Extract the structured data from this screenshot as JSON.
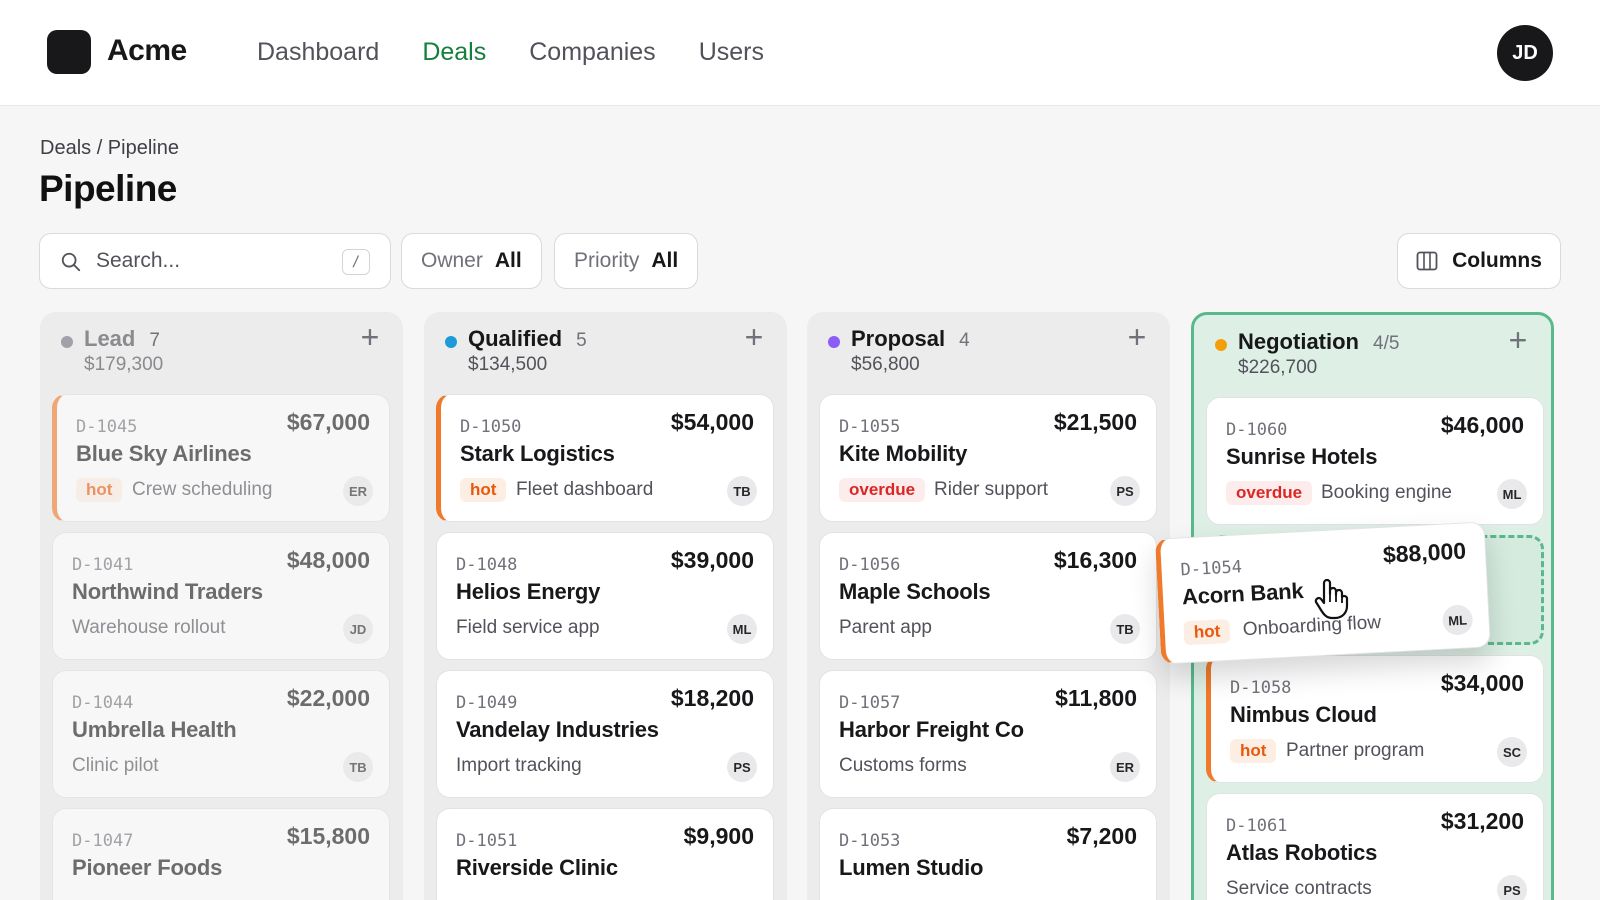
{
  "header": {
    "brand": "Acme",
    "nav": [
      "Dashboard",
      "Deals",
      "Companies",
      "Users"
    ],
    "active_nav": "Deals",
    "avatar_initials": "JD"
  },
  "page": {
    "breadcrumb": "Deals / Pipeline",
    "title": "Pipeline"
  },
  "toolbar": {
    "search_placeholder": "Search...",
    "search_shortcut": "/",
    "owner_label": "Owner",
    "owner_value": "All",
    "priority_label": "Priority",
    "priority_value": "All",
    "columns_label": "Columns"
  },
  "colors": {
    "accent": "#15803d",
    "lead": "#a1a1aa",
    "qualified": "#1d9bd8",
    "proposal": "#8b5cf6",
    "negotiation": "#f59e0b",
    "hot_tag": "#dc2626",
    "priority_border": "#f07a2a"
  },
  "columns": [
    {
      "name": "Lead",
      "count": "7",
      "total": "$179,300",
      "cards": [
        {
          "id": "D-1045",
          "amount": "$67,000",
          "company": "Blue Sky Airlines",
          "tag": "hot",
          "desc": "Crew scheduling",
          "owner": "ER"
        },
        {
          "id": "D-1041",
          "amount": "$48,000",
          "company": "Northwind Traders",
          "tag": "",
          "desc": "Warehouse rollout",
          "owner": "JD"
        },
        {
          "id": "D-1044",
          "amount": "$22,000",
          "company": "Umbrella Health",
          "tag": "",
          "desc": "Clinic pilot",
          "owner": "TB"
        },
        {
          "id": "D-1047",
          "amount": "$15,800",
          "company": "Pioneer Foods",
          "tag": "",
          "desc": "",
          "owner": ""
        }
      ]
    },
    {
      "name": "Qualified",
      "count": "5",
      "total": "$134,500",
      "cards": [
        {
          "id": "D-1050",
          "amount": "$54,000",
          "company": "Stark Logistics",
          "tag": "hot",
          "desc": "Fleet dashboard",
          "owner": "TB"
        },
        {
          "id": "D-1048",
          "amount": "$39,000",
          "company": "Helios Energy",
          "tag": "",
          "desc": "Field service app",
          "owner": "ML"
        },
        {
          "id": "D-1049",
          "amount": "$18,200",
          "company": "Vandelay Industries",
          "tag": "",
          "desc": "Import tracking",
          "owner": "PS"
        },
        {
          "id": "D-1051",
          "amount": "$9,900",
          "company": "Riverside Clinic",
          "tag": "",
          "desc": "",
          "owner": ""
        }
      ]
    },
    {
      "name": "Proposal",
      "count": "4",
      "total": "$56,800",
      "cards": [
        {
          "id": "D-1055",
          "amount": "$21,500",
          "company": "Kite Mobility",
          "tag": "overdue",
          "desc": "Rider support",
          "owner": "PS"
        },
        {
          "id": "D-1056",
          "amount": "$16,300",
          "company": "Maple Schools",
          "tag": "",
          "desc": "Parent app",
          "owner": "TB"
        },
        {
          "id": "D-1057",
          "amount": "$11,800",
          "company": "Harbor Freight Co",
          "tag": "",
          "desc": "Customs forms",
          "owner": "ER"
        },
        {
          "id": "D-1053",
          "amount": "$7,200",
          "company": "Lumen Studio",
          "tag": "",
          "desc": "",
          "owner": ""
        }
      ]
    },
    {
      "name": "Negotiation",
      "count": "4/5",
      "total": "$226,700",
      "cards": [
        {
          "id": "D-1060",
          "amount": "$46,000",
          "company": "Sunrise Hotels",
          "tag": "overdue",
          "desc": "Booking engine",
          "owner": "ML"
        },
        {
          "id": "D-1058",
          "amount": "$34,000",
          "company": "Nimbus Cloud",
          "tag": "hot",
          "desc": "Partner program",
          "owner": "SC"
        },
        {
          "id": "D-1061",
          "amount": "$31,200",
          "company": "Atlas Robotics",
          "tag": "",
          "desc": "Service contracts",
          "owner": "PS"
        }
      ]
    }
  ],
  "dragging_card": {
    "id": "D-1054",
    "amount": "$88,000",
    "company": "Acorn Bank",
    "tag": "hot",
    "desc": "Onboarding flow",
    "owner": "ML"
  },
  "icons": {
    "search": "search-icon",
    "columns": "columns-icon",
    "add": "plus-icon",
    "cursor": "grab-hand-cursor-icon"
  }
}
